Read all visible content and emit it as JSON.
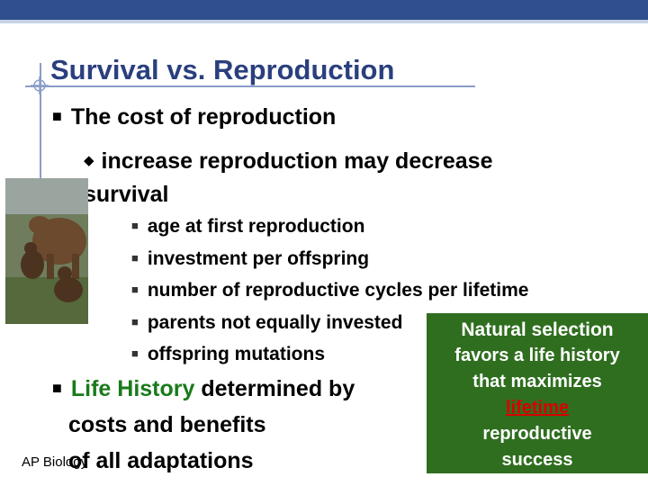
{
  "slide": {
    "title": "Survival vs. Reproduction",
    "bullet1": "The cost of reproduction",
    "sub_bullet": "increase reproduction may decrease survival",
    "items": [
      "age at first reproduction",
      "investment per offspring",
      "number of reproductive cycles per lifetime",
      "parents not equally invested",
      "offspring mutations"
    ],
    "bullet2": {
      "highlight": "Life History",
      "rest_line1": " determined by",
      "line2": "costs and benefits",
      "line3": "of all adaptations"
    },
    "footer": "AP Biology",
    "callout": {
      "line1": "Natural selection",
      "line2": "favors a life history",
      "line3": "that maximizes",
      "line4": "lifetime",
      "line5": "reproductive",
      "line6": "success"
    },
    "photo_alt": "brown bear with cubs"
  },
  "colors": {
    "title": "#2a3f7e",
    "topbar": "#2f4f8f",
    "callout_bg": "#2f6e1f",
    "highlight_green": "#1a7a1a",
    "callout_red": "#d80000"
  }
}
